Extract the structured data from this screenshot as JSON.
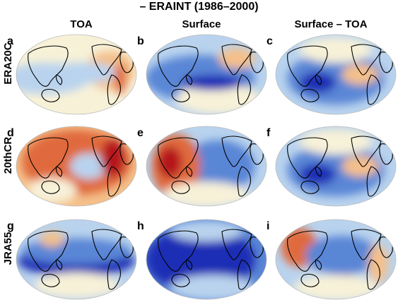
{
  "title": "– ERAINT (1986–2000)",
  "columns": [
    {
      "label": "TOA"
    },
    {
      "label": "Surface"
    },
    {
      "label": "Surface – TOA"
    }
  ],
  "rows": [
    {
      "label": "ERA20C"
    },
    {
      "label": "20thCR"
    },
    {
      "label": "JRA55"
    }
  ],
  "panels": [
    {
      "letter": "a",
      "row": 0,
      "col": 0,
      "tone": "light-mixed"
    },
    {
      "letter": "b",
      "row": 0,
      "col": 1,
      "tone": "blue-tropics"
    },
    {
      "letter": "c",
      "row": 0,
      "col": 2,
      "tone": "blue-mixed"
    },
    {
      "letter": "d",
      "row": 1,
      "col": 0,
      "tone": "red-warm"
    },
    {
      "letter": "e",
      "row": 1,
      "col": 1,
      "tone": "red-blue"
    },
    {
      "letter": "f",
      "row": 1,
      "col": 2,
      "tone": "blue-mixed"
    },
    {
      "letter": "g",
      "row": 2,
      "col": 0,
      "tone": "deep-blue-band"
    },
    {
      "letter": "h",
      "row": 2,
      "col": 1,
      "tone": "deep-blue"
    },
    {
      "letter": "i",
      "row": 2,
      "col": 2,
      "tone": "red-blue-mixed"
    }
  ],
  "colors": {
    "land_outline": "#000000",
    "dark_blue": "#1f2fb5",
    "mid_blue": "#5a86d6",
    "light_blue": "#b9d3ee",
    "neutral": "#f7f1d8",
    "light_red": "#f4c08a",
    "mid_red": "#e06a3c",
    "dark_red": "#b5171e"
  }
}
